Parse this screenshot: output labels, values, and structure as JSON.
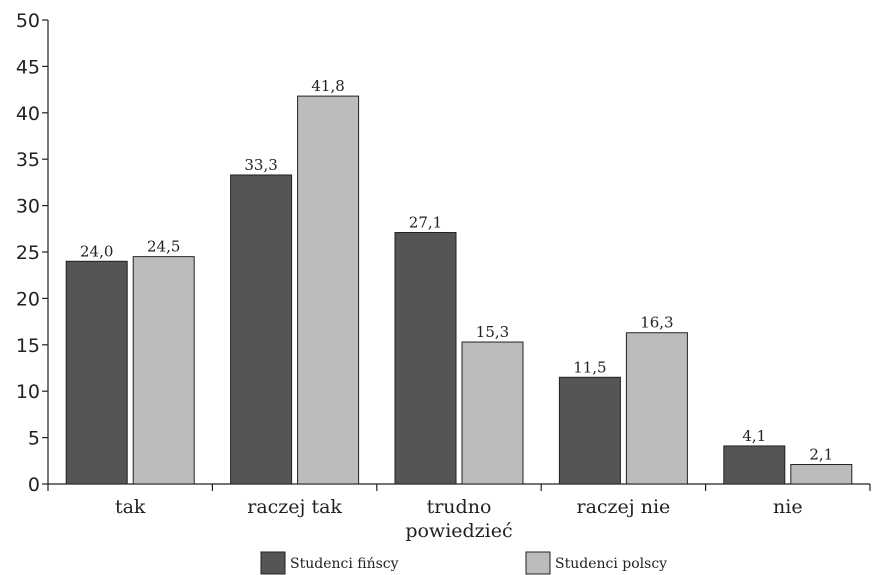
{
  "chart_data": {
    "type": "bar",
    "categories": [
      "tak",
      "raczej tak",
      "trudno\npowiedzieć",
      "raczej nie",
      "nie"
    ],
    "series": [
      {
        "name": "Studenci fińscy",
        "color": "#555557",
        "values": [
          24.0,
          33.3,
          27.1,
          11.5,
          4.1
        ],
        "labels": [
          "24,0",
          "33,3",
          "27,1",
          "11,5",
          "4,1"
        ]
      },
      {
        "name": "Studenci polscy",
        "color": "#bcbcbf",
        "values": [
          24.5,
          41.8,
          15.3,
          16.3,
          2.1
        ],
        "labels": [
          "24,5",
          "41,8",
          "15,3",
          "16,3",
          "2,1"
        ]
      }
    ],
    "ylim": [
      0,
      50
    ],
    "yticks": [
      0,
      5,
      10,
      15,
      20,
      25,
      30,
      35,
      40,
      45,
      50
    ],
    "grid": false,
    "legend_position": "bottom"
  }
}
